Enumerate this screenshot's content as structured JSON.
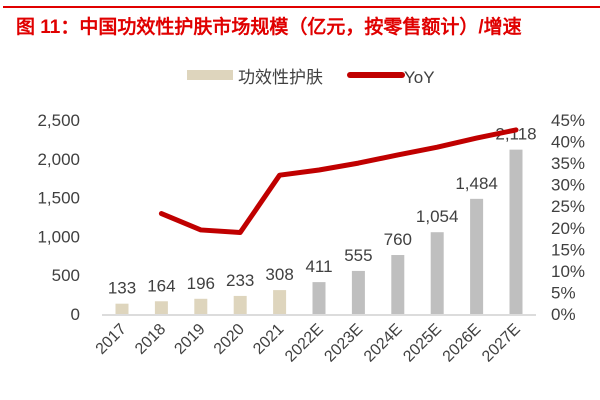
{
  "title": "图 11：中国功效性护肤市场规模（亿元，按零售额计）/增速",
  "colors": {
    "title": "#e00000",
    "bar_actual": "#ded5bd",
    "bar_forecast": "#bfbfbf",
    "line": "#c00000",
    "text": "#404040",
    "axis": "#d0d0d0"
  },
  "chart_data": {
    "type": "bar+line",
    "categories": [
      "2017",
      "2018",
      "2019",
      "2020",
      "2021",
      "2022E",
      "2023E",
      "2024E",
      "2025E",
      "2026E",
      "2027E"
    ],
    "series": [
      {
        "name": "功效性护肤",
        "type": "bar",
        "axis": "left",
        "values": [
          133,
          164,
          196,
          233,
          308,
          411,
          555,
          760,
          1054,
          1484,
          2118
        ],
        "labels": [
          "133",
          "164",
          "196",
          "233",
          "308",
          "411",
          "555",
          "760",
          "1,054",
          "1,484",
          "2,118"
        ]
      },
      {
        "name": "YoY",
        "type": "line",
        "axis": "right",
        "values": [
          null,
          23.3,
          19.5,
          18.9,
          32.2,
          33.4,
          35.0,
          36.9,
          38.7,
          40.8,
          42.7
        ]
      }
    ],
    "left_axis": {
      "range": [
        0,
        2500
      ],
      "ticks": [
        "0",
        "500",
        "1,000",
        "1,500",
        "2,000",
        "2,500"
      ]
    },
    "right_axis": {
      "range": [
        0,
        45
      ],
      "ticks": [
        "0%",
        "5%",
        "10%",
        "15%",
        "20%",
        "25%",
        "30%",
        "35%",
        "40%",
        "45%"
      ]
    },
    "grid": false,
    "legend": {
      "placement": "top",
      "entries": [
        "功效性护肤",
        "YoY"
      ]
    }
  }
}
